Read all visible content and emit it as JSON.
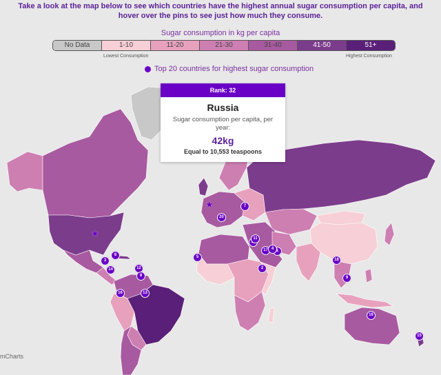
{
  "intro": "Take a look at the map below to see which countries have the highest annual sugar consumption per capita, and hover over the pins to see just how much they consume.",
  "legend": {
    "title": "Sugar consumption in kg per capita",
    "segments": [
      {
        "label": "No Data",
        "color": "#c8c8c8"
      },
      {
        "label": "1-10",
        "color": "#f7cfd6"
      },
      {
        "label": "11-20",
        "color": "#e7a1bd"
      },
      {
        "label": "21-30",
        "color": "#cd7fb2"
      },
      {
        "label": "31-40",
        "color": "#a85aa0"
      },
      {
        "label": "41-50",
        "color": "#7c3c8c"
      },
      {
        "label": "51+",
        "color": "#5a1f78"
      }
    ],
    "low_label": "Lowest Consumption",
    "high_label": "Highest Consumption"
  },
  "top20_label": "Top 20 countries for highest sugar consumption",
  "tooltip": {
    "rank": "Rank: 32",
    "country": "Russia",
    "desc": "Sugar consumption per capita, per year:",
    "value": "42kg",
    "equal": "Equal to 10,553 teaspoons"
  },
  "pins": [
    "7",
    "20",
    "10",
    "17",
    "1",
    "2",
    "5",
    "6",
    "3",
    "14",
    "12",
    "8",
    "16",
    "13",
    "18",
    "9",
    "19",
    "15",
    "4",
    "11"
  ],
  "credit": "mCharts"
}
